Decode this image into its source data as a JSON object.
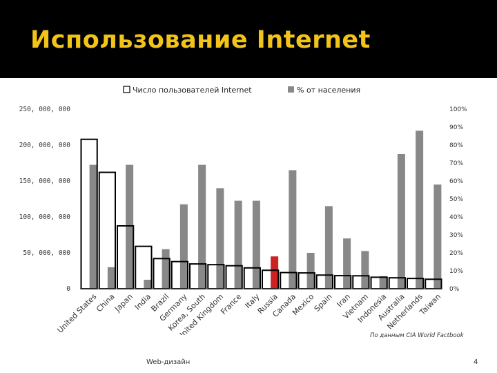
{
  "slide": {
    "title": "Использование Internet",
    "source_note": "По данным CIA World Factbook",
    "footer_text": "Web-дизайн",
    "page_number": "4"
  },
  "colors": {
    "header_bg": "#000000",
    "title": "#f2c318",
    "percent_bar": "#888888",
    "highlight_bar": "#cc2222",
    "users_bar_stroke": "#000000"
  },
  "chart_data": {
    "type": "bar",
    "categories": [
      "United States",
      "China",
      "Japan",
      "India",
      "Brazil",
      "Germany",
      "Korea, South",
      "United Kingdom",
      "France",
      "Italy",
      "Russia",
      "Canada",
      "Mexico",
      "Spain",
      "Iran",
      "Vietnam",
      "Indonesia",
      "Australia",
      "Netherlands",
      "Taiwan"
    ],
    "series": [
      {
        "name": "Число пользователей Internet",
        "axis": "left",
        "style": "outline",
        "values": [
          208000000,
          162000000,
          87500000,
          59000000,
          42000000,
          37800000,
          34500000,
          33500000,
          32000000,
          29000000,
          25700000,
          22500000,
          22000000,
          19000000,
          18200000,
          18000000,
          16000000,
          15200000,
          14300000,
          13200000
        ]
      },
      {
        "name": "% от населения",
        "axis": "right",
        "style": "filled",
        "values": [
          69,
          12,
          69,
          5,
          22,
          47,
          69,
          56,
          49,
          49,
          18,
          66,
          20,
          46,
          28,
          21,
          7,
          75,
          88,
          58
        ]
      }
    ],
    "highlight_category": "Russia",
    "y_left": {
      "ticks": [
        "0",
        "50, 000, 000",
        "100, 000, 000",
        "150, 000, 000",
        "200, 000, 000",
        "250, 000, 000"
      ],
      "range": [
        0,
        250000000
      ]
    },
    "y_right": {
      "ticks": [
        "0%",
        "10%",
        "20%",
        "30%",
        "40%",
        "50%",
        "60%",
        "70%",
        "80%",
        "90%",
        "100%"
      ],
      "range": [
        0,
        100
      ]
    },
    "legend_position": "top",
    "grid": false
  }
}
